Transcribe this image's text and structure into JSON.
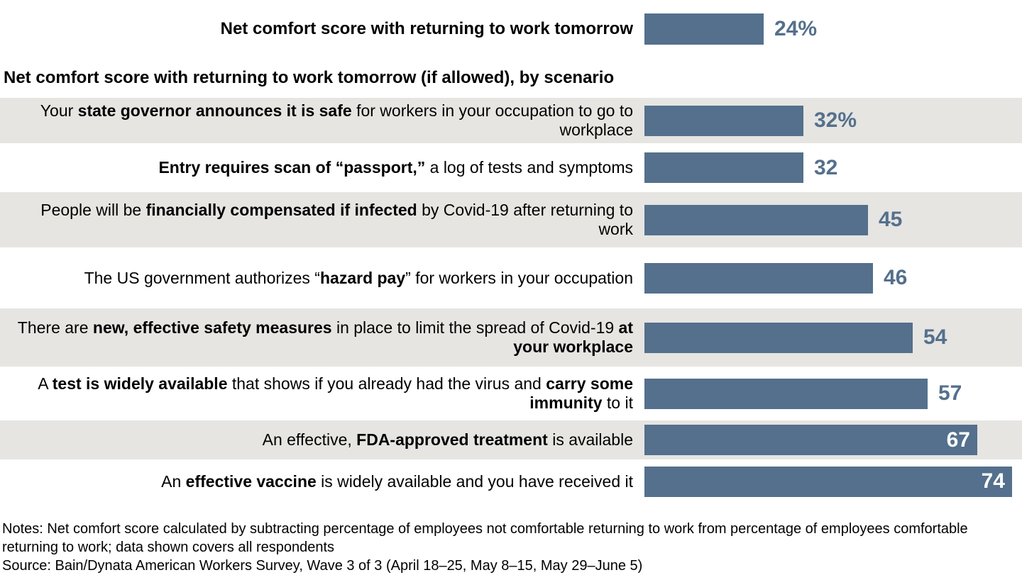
{
  "overall": {
    "label": "Net comfort score with returning to work tomorrow",
    "value": 24,
    "value_label": "24%"
  },
  "section_heading": "Net comfort score with returning to work tomorrow (if allowed), by scenario",
  "rows": [
    {
      "segments": [
        {
          "text": "Your ",
          "bold": false
        },
        {
          "text": "state governor announces it is safe",
          "bold": true
        },
        {
          "text": " for workers in your occupation to go to workplace",
          "bold": false
        }
      ],
      "value": 32,
      "value_label": "32%",
      "value_inside": false
    },
    {
      "segments": [
        {
          "text": "Entry requires scan of “passport,”",
          "bold": true
        },
        {
          "text": " a log of tests and symptoms",
          "bold": false
        }
      ],
      "value": 32,
      "value_label": "32",
      "value_inside": false
    },
    {
      "segments": [
        {
          "text": "People will be ",
          "bold": false
        },
        {
          "text": "financially compensated if infected",
          "bold": true
        },
        {
          "text": " by Covid-19 after returning to work",
          "bold": false
        }
      ],
      "value": 45,
      "value_label": "45",
      "value_inside": false
    },
    {
      "segments": [
        {
          "text": "The US government authorizes “",
          "bold": false
        },
        {
          "text": "hazard pay",
          "bold": true
        },
        {
          "text": "” for workers in your occupation",
          "bold": false
        }
      ],
      "value": 46,
      "value_label": "46",
      "value_inside": false
    },
    {
      "segments": [
        {
          "text": "There are ",
          "bold": false
        },
        {
          "text": "new, effective safety measures",
          "bold": true
        },
        {
          "text": " in place to limit the spread of Covid-19 ",
          "bold": false
        },
        {
          "text": "at your workplace",
          "bold": true
        }
      ],
      "value": 54,
      "value_label": "54",
      "value_inside": false
    },
    {
      "segments": [
        {
          "text": "A ",
          "bold": false
        },
        {
          "text": "test is widely available",
          "bold": true
        },
        {
          "text": " that shows if you already had the virus and ",
          "bold": false
        },
        {
          "text": "carry some immunity",
          "bold": true
        },
        {
          "text": " to it",
          "bold": false
        }
      ],
      "value": 57,
      "value_label": "57",
      "value_inside": false
    },
    {
      "segments": [
        {
          "text": "An effective, ",
          "bold": false
        },
        {
          "text": "FDA-approved treatment",
          "bold": true
        },
        {
          "text": " is available",
          "bold": false
        }
      ],
      "value": 67,
      "value_label": "67",
      "value_inside": true
    },
    {
      "segments": [
        {
          "text": "An ",
          "bold": false
        },
        {
          "text": "effective vaccine",
          "bold": true
        },
        {
          "text": " is widely available and you have received it",
          "bold": false
        }
      ],
      "value": 74,
      "value_label": "74",
      "value_inside": true
    }
  ],
  "notes": "Notes: Net comfort score calculated by subtracting percentage of employees not comfortable returning to work from percentage of employees comfortable returning to work; data shown covers all respondents",
  "source": "Source: Bain/Dynata American Workers Survey, Wave 3 of 3 (April 18–25, May 8–15, May 29–June 5)",
  "colors": {
    "bar": "#54708c",
    "value_text": "#54708c",
    "value_text_inside": "#ffffff",
    "row_shade": "#e6e5e2",
    "text": "#000000"
  },
  "chart_data": {
    "type": "bar",
    "orientation": "horizontal",
    "title": "Net comfort score with returning to work tomorrow",
    "overall": {
      "category": "Net comfort score with returning to work tomorrow",
      "value": 24,
      "value_label": "24%"
    },
    "subtitle": "Net comfort score with returning to work tomorrow (if allowed), by scenario",
    "categories": [
      "Your state governor announces it is safe for workers in your occupation to go to workplace",
      "Entry requires scan of “passport,” a log of tests and symptoms",
      "People will be financially compensated if infected by Covid-19 after returning to work",
      "The US government authorizes “hazard pay” for workers in your occupation",
      "There are new, effective safety measures in place to limit the spread of Covid-19 at your workplace",
      "A test is widely available that shows if you already had the virus and carry some immunity to it",
      "An effective, FDA-approved treatment is available",
      "An effective vaccine is widely available and you have received it"
    ],
    "values": [
      32,
      32,
      45,
      46,
      54,
      57,
      67,
      74
    ],
    "value_labels": [
      "32%",
      "32",
      "45",
      "46",
      "54",
      "57",
      "67",
      "74"
    ],
    "unit": "net percentage points",
    "xlim": [
      0,
      76
    ],
    "grid": false,
    "legend": false,
    "bar_color": "#54708c",
    "row_band_color": "#e6e5e2",
    "notes": "Net comfort score calculated by subtracting percentage of employees not comfortable returning to work from percentage of employees comfortable returning to work; data shown covers all respondents",
    "source": "Bain/Dynata American Workers Survey, Wave 3 of 3 (April 18–25, May 8–15, May 29–June 5)"
  }
}
